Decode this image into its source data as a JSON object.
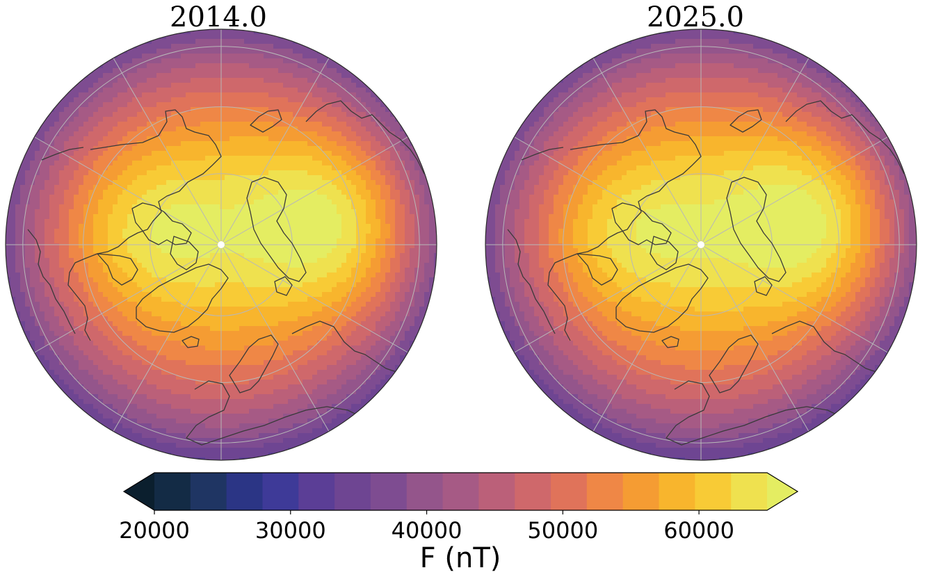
{
  "figure": {
    "panels": [
      {
        "title": "2014.0",
        "fields": [
          {
            "dx": -0.33,
            "dy": -0.08,
            "amp": 6500,
            "sx": 0.3,
            "sy": 0.26
          },
          {
            "dx": 0.54,
            "dy": -0.11,
            "amp": 11000,
            "sx": 0.28,
            "sy": 0.3
          }
        ],
        "levels_center_nT": 58000,
        "levels_edge_nT": 35000
      },
      {
        "title": "2025.0",
        "fields": [
          {
            "dx": -0.33,
            "dy": -0.08,
            "amp": 6000,
            "sx": 0.3,
            "sy": 0.26
          },
          {
            "dx": 0.55,
            "dy": -0.12,
            "amp": 11500,
            "sx": 0.29,
            "sy": 0.31
          }
        ],
        "levels_center_nT": 58200,
        "levels_edge_nT": 35000
      }
    ],
    "pole_marker_color": "#ffffff",
    "coastline_color": "#3a3a3a",
    "graticule_color": "#b8b8b8"
  },
  "colorbar": {
    "label": "F (nT)",
    "ticks": [
      20000,
      30000,
      40000,
      50000,
      60000
    ],
    "tick_labels": [
      "20000",
      "30000",
      "40000",
      "50000",
      "60000"
    ],
    "min": 17500,
    "max": 67500,
    "step": 2500,
    "extend": "both",
    "colors": [
      "#0b1f2e",
      "#132b45",
      "#1f3563",
      "#2b3585",
      "#3e3a98",
      "#5b3e96",
      "#6e4592",
      "#7e4c91",
      "#94558b",
      "#a65a85",
      "#bb6079",
      "#cf686b",
      "#e0735a",
      "#ef8746",
      "#f59c33",
      "#f8b52d",
      "#f8cb36",
      "#efe14f",
      "#e4ed62"
    ]
  }
}
